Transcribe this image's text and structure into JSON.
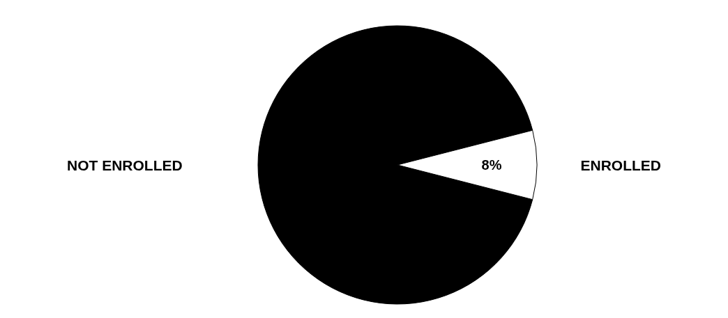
{
  "chart_data": {
    "type": "pie",
    "categories": [
      "NOT ENROLLED",
      "ENROLLED"
    ],
    "values": [
      92,
      8
    ],
    "colors": [
      "#000000",
      "#ffffff"
    ],
    "value_labels": [
      null,
      "8%"
    ]
  }
}
